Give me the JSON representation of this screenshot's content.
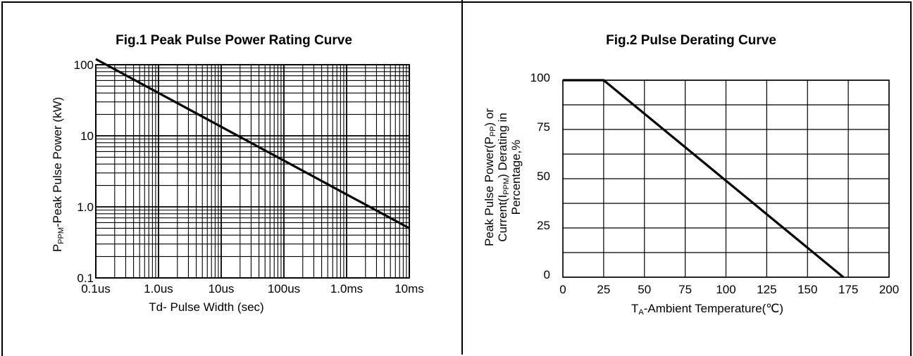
{
  "chart_data": [
    {
      "type": "line",
      "title": "Fig.1 Peak Pulse Power Rating Curve",
      "xlabel": "Td- Pulse Width (sec)",
      "ylabel_main": "P",
      "ylabel_sub": "PPM",
      "ylabel_rest": "-Peak Pulse Power (kW)",
      "xscale": "log",
      "yscale": "log",
      "x_ticks": [
        "0.1us",
        "1.0us",
        "10us",
        "100us",
        "1.0ms",
        "10ms"
      ],
      "y_ticks": [
        "100",
        "10",
        "1.0",
        "0.1"
      ],
      "xlim_decades": [
        0,
        5
      ],
      "ylim_decades": [
        0,
        3
      ],
      "grid": true,
      "series": [
        {
          "x": [
            "0.1us",
            "10ms"
          ],
          "y": [
            120,
            0.5
          ]
        }
      ]
    },
    {
      "type": "line",
      "title": "Fig.2 Pulse Derating Curve",
      "xlabel_main": "T",
      "xlabel_sub": "A",
      "xlabel_rest": "-Ambient Temperature(℃)",
      "ylabel_lines": [
        {
          "main": "Peak Pulse Power(P",
          "sub": "PP",
          "rest": ") or"
        },
        {
          "main": "Current(I",
          "sub": "PPM",
          "rest": ") Derating in"
        },
        {
          "main": "Percentage,%",
          "sub": "",
          "rest": ""
        }
      ],
      "x_ticks": [
        0,
        25,
        50,
        75,
        100,
        125,
        150,
        175,
        200
      ],
      "y_ticks": [
        100,
        75,
        50,
        25,
        0
      ],
      "xlim": [
        0,
        200
      ],
      "ylim": [
        0,
        100
      ],
      "grid": true,
      "series": [
        {
          "x": [
            0,
            25,
            172
          ],
          "y": [
            100,
            100,
            0
          ]
        }
      ]
    }
  ]
}
